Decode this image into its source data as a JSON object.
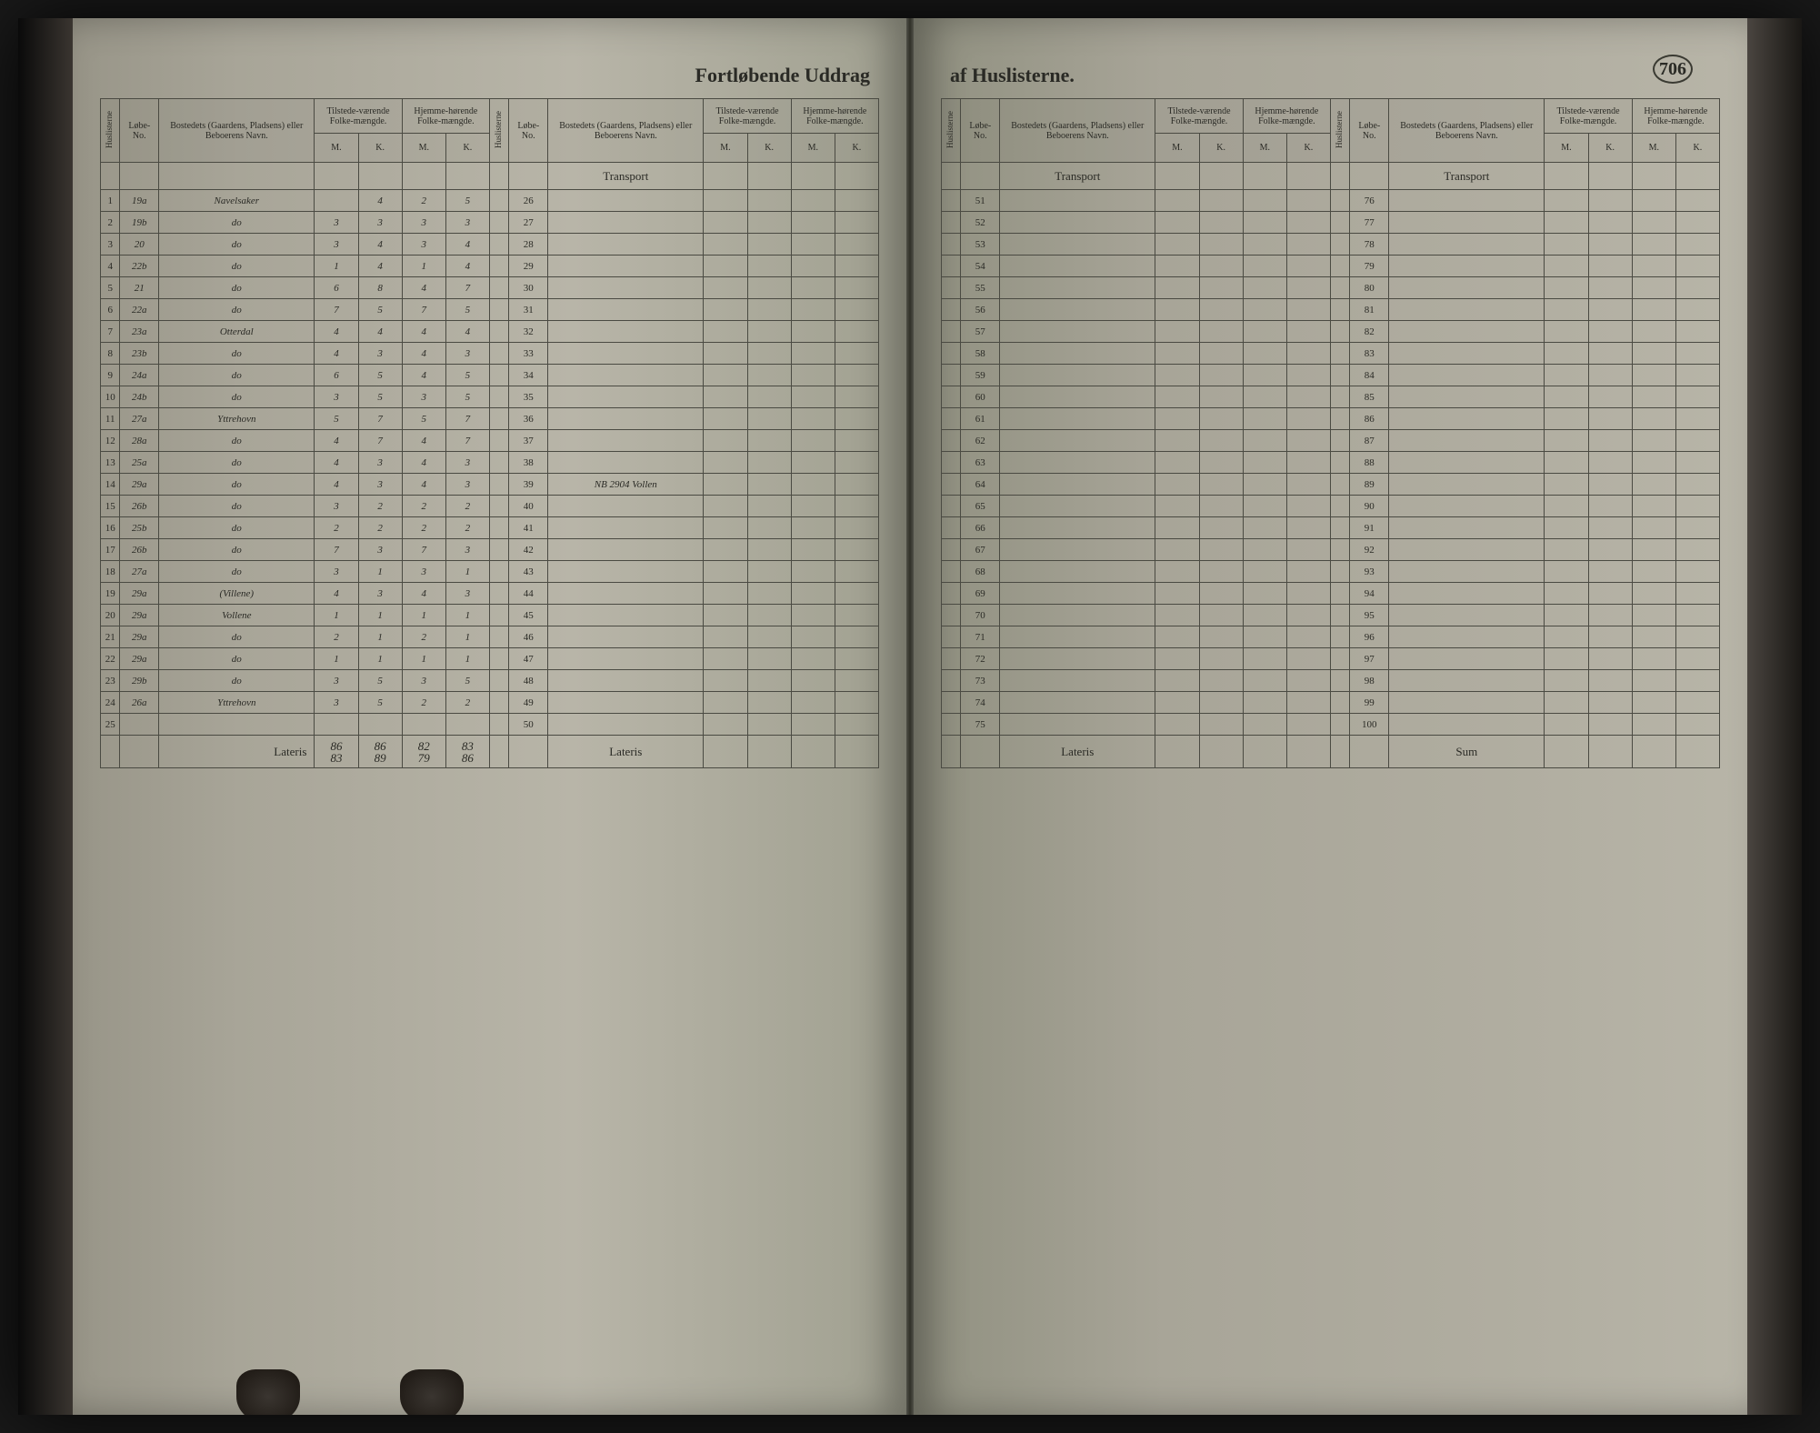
{
  "document": {
    "title_left": "Fortløbende Uddrag",
    "title_right": "af Huslisterne.",
    "page_number": "706",
    "headers": {
      "huslisterne": "Huslisterne",
      "lobe_no": "Løbe-No.",
      "bosted": "Bostedets (Gaardens, Pladsens) eller Beboerens Navn.",
      "tilstede": "Tilstede-værende Folke-mængde.",
      "hjemme": "Hjemme-hørende Folke-mængde.",
      "m": "M.",
      "k": "K."
    },
    "transport": "Transport",
    "lateris": "Lateris",
    "sum": "Sum",
    "rows_left": [
      {
        "n": "1",
        "lobe": "19a",
        "name": "Navelsaker",
        "m1": "",
        "k1": "4",
        "m2": "2",
        "k2": "5"
      },
      {
        "n": "2",
        "lobe": "19b",
        "name": "do",
        "m1": "3",
        "k1": "3",
        "m2": "3",
        "k2": "3"
      },
      {
        "n": "3",
        "lobe": "20",
        "name": "do",
        "m1": "3",
        "k1": "4",
        "m2": "3",
        "k2": "4"
      },
      {
        "n": "4",
        "lobe": "22b",
        "name": "do",
        "m1": "1",
        "k1": "4",
        "m2": "1",
        "k2": "4"
      },
      {
        "n": "5",
        "lobe": "21",
        "name": "do",
        "m1": "6",
        "k1": "8",
        "m2": "4",
        "k2": "7"
      },
      {
        "n": "6",
        "lobe": "22a",
        "name": "do",
        "m1": "7",
        "k1": "5",
        "m2": "7",
        "k2": "5"
      },
      {
        "n": "7",
        "lobe": "23a",
        "name": "Otterdal",
        "m1": "4",
        "k1": "4",
        "m2": "4",
        "k2": "4"
      },
      {
        "n": "8",
        "lobe": "23b",
        "name": "do",
        "m1": "4",
        "k1": "3",
        "m2": "4",
        "k2": "3"
      },
      {
        "n": "9",
        "lobe": "24a",
        "name": "do",
        "m1": "6",
        "k1": "5",
        "m2": "4",
        "k2": "5"
      },
      {
        "n": "10",
        "lobe": "24b",
        "name": "do",
        "m1": "3",
        "k1": "5",
        "m2": "3",
        "k2": "5"
      },
      {
        "n": "11",
        "lobe": "27a",
        "name": "Yttrehovn",
        "m1": "5",
        "k1": "7",
        "m2": "5",
        "k2": "7"
      },
      {
        "n": "12",
        "lobe": "28a",
        "name": "do",
        "m1": "4",
        "k1": "7",
        "m2": "4",
        "k2": "7"
      },
      {
        "n": "13",
        "lobe": "25a",
        "name": "do",
        "m1": "4",
        "k1": "3",
        "m2": "4",
        "k2": "3"
      },
      {
        "n": "14",
        "lobe": "29a",
        "name": "do",
        "m1": "4",
        "k1": "3",
        "m2": "4",
        "k2": "3"
      },
      {
        "n": "15",
        "lobe": "26b",
        "name": "do",
        "m1": "3",
        "k1": "2",
        "m2": "2",
        "k2": "2"
      },
      {
        "n": "16",
        "lobe": "25b",
        "name": "do",
        "m1": "2",
        "k1": "2",
        "m2": "2",
        "k2": "2"
      },
      {
        "n": "17",
        "lobe": "26b",
        "name": "do",
        "m1": "7",
        "k1": "3",
        "m2": "7",
        "k2": "3"
      },
      {
        "n": "18",
        "lobe": "27a",
        "name": "do",
        "m1": "3",
        "k1": "1",
        "m2": "3",
        "k2": "1"
      },
      {
        "n": "19",
        "lobe": "29a",
        "name": "(Villene)",
        "m1": "4",
        "k1": "3",
        "m2": "4",
        "k2": "3"
      },
      {
        "n": "20",
        "lobe": "29a",
        "name": "Vollene",
        "m1": "1",
        "k1": "1",
        "m2": "1",
        "k2": "1"
      },
      {
        "n": "21",
        "lobe": "29a",
        "name": "do",
        "m1": "2",
        "k1": "1",
        "m2": "2",
        "k2": "1"
      },
      {
        "n": "22",
        "lobe": "29a",
        "name": "do",
        "m1": "1",
        "k1": "1",
        "m2": "1",
        "k2": "1"
      },
      {
        "n": "23",
        "lobe": "29b",
        "name": "do",
        "m1": "3",
        "k1": "5",
        "m2": "3",
        "k2": "5"
      },
      {
        "n": "24",
        "lobe": "26a",
        "name": "Yttrehovn",
        "m1": "3",
        "k1": "5",
        "m2": "2",
        "k2": "2"
      },
      {
        "n": "25",
        "lobe": "",
        "name": "",
        "m1": "",
        "k1": "",
        "m2": "",
        "k2": ""
      }
    ],
    "rows_left_col2_start": 26,
    "note_row14": "NB 2904 Vollen",
    "lateris_totals": {
      "m1": "83",
      "k1": "89",
      "m2": "79",
      "k2": "86",
      "m1b": "86",
      "k1b": "86",
      "m2b": "82",
      "k2b": "83"
    },
    "right_page_rows_col3_start": 51,
    "right_page_rows_col4_start": 76,
    "colors": {
      "paper": "#a8a598",
      "ink": "#3a3a30",
      "border": "#4a4a42",
      "background": "#1a1a1a"
    }
  }
}
